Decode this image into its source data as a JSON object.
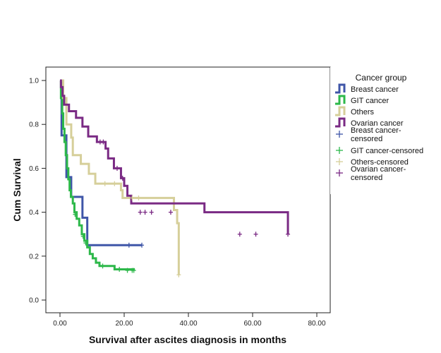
{
  "chart_data": {
    "type": "line",
    "subtype": "kaplan-meier-step",
    "title": "",
    "xlabel": "Survival after ascites diagnosis in months",
    "ylabel": "Cum Survival",
    "xlim": [
      -4,
      84
    ],
    "ylim": [
      -0.05,
      1.05
    ],
    "xticks": [
      0,
      20,
      40,
      60,
      80
    ],
    "xtick_labels": [
      "0.00",
      "20.00",
      "40.00",
      "60.00",
      "80.00"
    ],
    "yticks": [
      0.0,
      0.2,
      0.4,
      0.6,
      0.8,
      1.0
    ],
    "ytick_labels": [
      "0.0",
      "0.2",
      "0.4",
      "0.6",
      "0.8",
      "1.0"
    ],
    "grid": false,
    "legend": {
      "title": "Cancer group",
      "placement": "right",
      "entries": [
        {
          "label": "Breast cancer",
          "kind": "step",
          "series": 0
        },
        {
          "label": "GIT cancer",
          "kind": "step",
          "series": 1
        },
        {
          "label": "Others",
          "kind": "step",
          "series": 2
        },
        {
          "label": "Ovarian cancer",
          "kind": "step",
          "series": 3
        },
        {
          "label": "Breast cancer-\ncensored",
          "kind": "censor",
          "series": 0
        },
        {
          "label": "GIT cancer-censored",
          "kind": "censor",
          "series": 1
        },
        {
          "label": "Others-censored",
          "kind": "censor",
          "series": 2
        },
        {
          "label": "Ovarian cancer-\ncensored",
          "kind": "censor",
          "series": 3
        }
      ]
    },
    "series": [
      {
        "name": "Breast cancer",
        "color": "#3f56a8",
        "steps": [
          [
            0,
            1.0
          ],
          [
            0.5,
            0.75
          ],
          [
            2.0,
            0.56
          ],
          [
            3.5,
            0.47
          ],
          [
            7.0,
            0.375
          ],
          [
            8.5,
            0.25
          ],
          [
            25.5,
            0.25
          ]
        ],
        "censored": [
          [
            21.5,
            0.25
          ],
          [
            25.5,
            0.25
          ]
        ]
      },
      {
        "name": "GIT cancer",
        "color": "#2db84a",
        "steps": [
          [
            0,
            1.0
          ],
          [
            0.3,
            0.92
          ],
          [
            0.7,
            0.85
          ],
          [
            1.0,
            0.78
          ],
          [
            1.4,
            0.72
          ],
          [
            1.8,
            0.66
          ],
          [
            2.2,
            0.6
          ],
          [
            2.6,
            0.55
          ],
          [
            3.0,
            0.5
          ],
          [
            3.4,
            0.47
          ],
          [
            4.0,
            0.44
          ],
          [
            4.5,
            0.4
          ],
          [
            5.2,
            0.37
          ],
          [
            6.0,
            0.34
          ],
          [
            6.8,
            0.3
          ],
          [
            7.6,
            0.27
          ],
          [
            8.5,
            0.24
          ],
          [
            9.3,
            0.21
          ],
          [
            10.2,
            0.19
          ],
          [
            11.2,
            0.17
          ],
          [
            12.3,
            0.155
          ],
          [
            17.0,
            0.14
          ],
          [
            23.0,
            0.135
          ]
        ],
        "censored": [
          [
            4.7,
            0.39
          ],
          [
            7.2,
            0.29
          ],
          [
            8.0,
            0.26
          ],
          [
            13.3,
            0.155
          ],
          [
            18.5,
            0.14
          ],
          [
            21.0,
            0.135
          ],
          [
            22.5,
            0.135
          ],
          [
            23.0,
            0.135
          ]
        ]
      },
      {
        "name": "Others",
        "color": "#d6cf9a",
        "steps": [
          [
            0,
            1.0
          ],
          [
            1.0,
            0.92
          ],
          [
            2.0,
            0.8
          ],
          [
            3.5,
            0.74
          ],
          [
            4.0,
            0.66
          ],
          [
            6.5,
            0.62
          ],
          [
            9.0,
            0.575
          ],
          [
            11.0,
            0.53
          ],
          [
            19.0,
            0.5
          ],
          [
            19.5,
            0.465
          ],
          [
            35.5,
            0.41
          ],
          [
            36.5,
            0.35
          ],
          [
            37.0,
            0.115
          ]
        ],
        "censored": [
          [
            14.0,
            0.53
          ],
          [
            17.0,
            0.53
          ],
          [
            22.5,
            0.465
          ],
          [
            24.5,
            0.465
          ],
          [
            37.0,
            0.115
          ]
        ]
      },
      {
        "name": "Ovarian cancer",
        "color": "#7a2a84",
        "steps": [
          [
            0,
            1.0
          ],
          [
            0.3,
            0.97
          ],
          [
            0.8,
            0.93
          ],
          [
            1.3,
            0.89
          ],
          [
            2.8,
            0.86
          ],
          [
            5.0,
            0.83
          ],
          [
            7.0,
            0.79
          ],
          [
            8.8,
            0.745
          ],
          [
            11.5,
            0.72
          ],
          [
            14.2,
            0.69
          ],
          [
            15.0,
            0.645
          ],
          [
            16.8,
            0.6
          ],
          [
            19.0,
            0.555
          ],
          [
            20.0,
            0.52
          ],
          [
            21.0,
            0.475
          ],
          [
            22.2,
            0.44
          ],
          [
            45.0,
            0.4
          ],
          [
            71.0,
            0.3
          ]
        ],
        "censored": [
          [
            12.5,
            0.72
          ],
          [
            13.5,
            0.72
          ],
          [
            17.8,
            0.6
          ],
          [
            19.5,
            0.555
          ],
          [
            25.0,
            0.4
          ],
          [
            26.5,
            0.4
          ],
          [
            28.5,
            0.4
          ],
          [
            34.5,
            0.4
          ],
          [
            56.0,
            0.3
          ],
          [
            61.0,
            0.3
          ],
          [
            71.0,
            0.3
          ]
        ]
      }
    ]
  }
}
